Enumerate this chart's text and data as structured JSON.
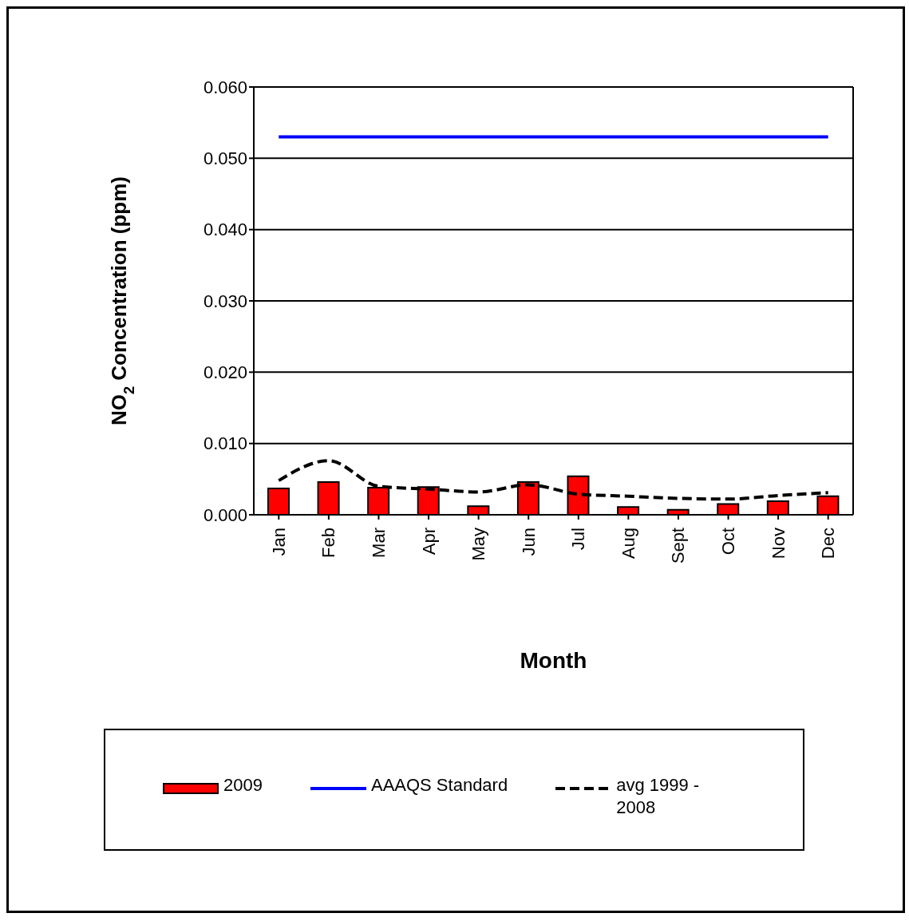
{
  "chart_data": {
    "type": "bar",
    "categories": [
      "Jan",
      "Feb",
      "Mar",
      "Apr",
      "May",
      "Jun",
      "Jul",
      "Aug",
      "Sept",
      "Oct",
      "Nov",
      "Dec"
    ],
    "series": [
      {
        "name": "2009",
        "color": "#ff0000",
        "values": [
          0.0037,
          0.0046,
          0.0038,
          0.0039,
          0.0012,
          0.0046,
          0.0054,
          0.0011,
          0.0007,
          0.0015,
          0.0019,
          0.0026
        ]
      },
      {
        "name": "AAAQS Standard",
        "type": "line",
        "color": "#0000ff",
        "line_style": "solid",
        "values": [
          0.053,
          0.053,
          0.053,
          0.053,
          0.053,
          0.053,
          0.053,
          0.053,
          0.053,
          0.053,
          0.053,
          0.053
        ]
      },
      {
        "name": "avg 1999 - 2008",
        "type": "line",
        "color": "#000000",
        "line_style": "dashed",
        "values": [
          0.0048,
          0.0076,
          0.004,
          0.0036,
          0.0032,
          0.0042,
          0.0029,
          0.0026,
          0.0023,
          0.0022,
          0.0027,
          0.0031
        ]
      }
    ],
    "xlabel": "Month",
    "ylabel": "NO$_{2}$ Concentration (ppm)",
    "ylim": [
      0,
      0.06
    ],
    "yticks": [
      {
        "value": 0,
        "label": "0.000"
      },
      {
        "value": 0.01,
        "label": "0.010"
      },
      {
        "value": 0.02,
        "label": "0.020"
      },
      {
        "value": 0.03,
        "label": "0.030"
      },
      {
        "value": 0.04,
        "label": "0.040"
      },
      {
        "value": 0.05,
        "label": "0.050"
      },
      {
        "value": 0.06,
        "label": "0.060"
      }
    ],
    "grid": "y",
    "legend": "bottom",
    "marker": "none"
  }
}
